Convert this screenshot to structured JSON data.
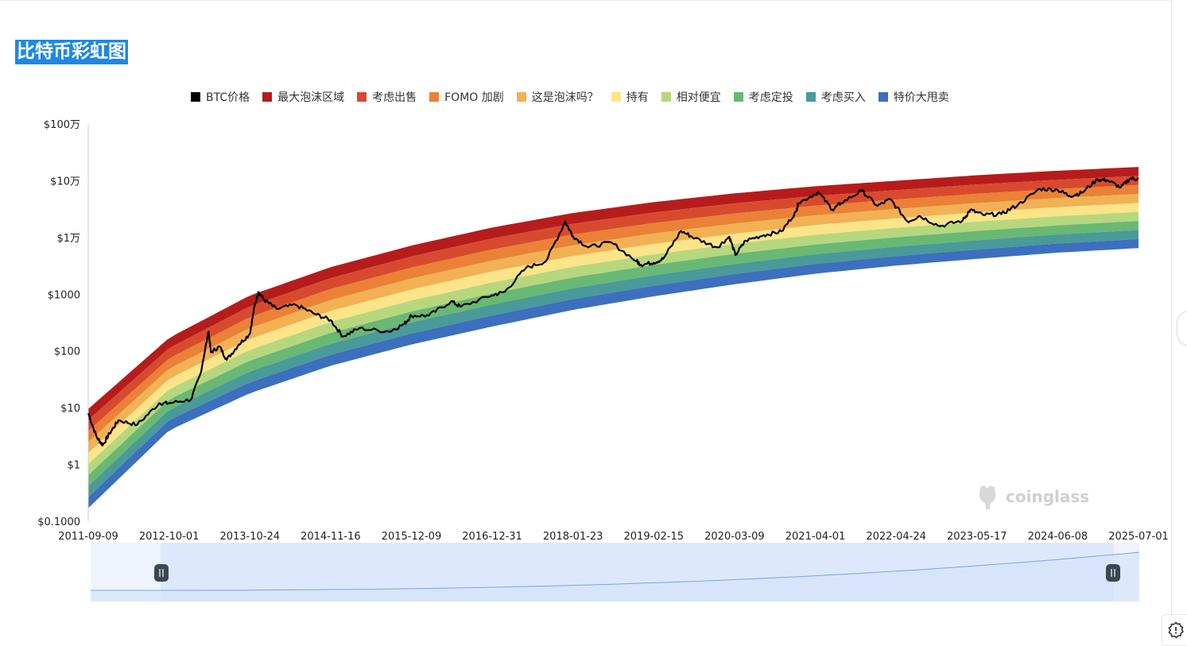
{
  "page": {
    "title": "比特币彩虹图",
    "watermark": "coinglass"
  },
  "legend": [
    {
      "label": "BTC价格",
      "color": "#000000"
    },
    {
      "label": "最大泡沫区域",
      "color": "#b71c1c"
    },
    {
      "label": "考虑出售",
      "color": "#d84a2e"
    },
    {
      "label": "FOMO 加剧",
      "color": "#ea8136"
    },
    {
      "label": "这是泡沫吗？",
      "color": "#f2b155"
    },
    {
      "label": "持有",
      "color": "#fce488"
    },
    {
      "label": "相对便宜",
      "color": "#b7d77e"
    },
    {
      "label": "考虑定投",
      "color": "#69b874"
    },
    {
      "label": "考虑买入",
      "color": "#4a9a99"
    },
    {
      "label": "特价大甩卖",
      "color": "#3c6fbd"
    }
  ],
  "chart_data": {
    "type": "area",
    "title": "比特币彩虹图",
    "y_scale": "log",
    "ylim": [
      0.1,
      1000000
    ],
    "y_ticks": [
      "$0.1000",
      "$1",
      "$10",
      "$100",
      "$1000",
      "$1万",
      "$10万",
      "$100万"
    ],
    "x_ticks": [
      "2011-09-09",
      "2012-10-01",
      "2013-10-24",
      "2014-11-16",
      "2015-12-09",
      "2016-12-31",
      "2018-01-23",
      "2019-02-15",
      "2020-03-09",
      "2021-04-01",
      "2022-04-24",
      "2023-05-17",
      "2024-06-08",
      "2025-07-01"
    ],
    "xlim": [
      "2011-09-09",
      "2025-07-01"
    ],
    "band_edges": {
      "x": [
        "2011-09-09",
        "2012-10-01",
        "2013-10-24",
        "2014-11-16",
        "2015-12-09",
        "2016-12-31",
        "2018-01-23",
        "2019-02-15",
        "2020-03-09",
        "2021-04-01",
        "2022-04-24",
        "2023-05-17",
        "2024-06-08",
        "2025-07-01"
      ],
      "bottom": [
        0.17,
        4.0,
        18,
        55,
        130,
        270,
        530,
        920,
        1500,
        2300,
        3200,
        4200,
        5400,
        6500
      ],
      "top": [
        9.5,
        170,
        950,
        3000,
        7200,
        15000,
        27000,
        42000,
        60000,
        80000,
        100000,
        125000,
        150000,
        175000
      ]
    },
    "series": [
      {
        "name": "BTC价格",
        "x": [
          "2011-09-09",
          "2011-10-20",
          "2011-11-18",
          "2011-12-20",
          "2012-02-01",
          "2012-05-01",
          "2012-08-15",
          "2012-10-01",
          "2013-01-15",
          "2013-03-01",
          "2013-04-09",
          "2013-04-20",
          "2013-06-01",
          "2013-07-05",
          "2013-09-01",
          "2013-10-24",
          "2013-11-15",
          "2013-12-04",
          "2014-01-01",
          "2014-03-01",
          "2014-06-01",
          "2014-09-01",
          "2014-11-16",
          "2015-01-14",
          "2015-04-01",
          "2015-08-25",
          "2015-11-05",
          "2015-12-09",
          "2016-03-01",
          "2016-06-17",
          "2016-08-01",
          "2016-12-31",
          "2017-03-01",
          "2017-06-11",
          "2017-09-15",
          "2017-12-17",
          "2018-01-23",
          "2018-04-06",
          "2018-07-25",
          "2018-11-25",
          "2018-12-15",
          "2019-02-15",
          "2019-04-01",
          "2019-06-26",
          "2019-09-01",
          "2019-12-17",
          "2020-02-13",
          "2020-03-13",
          "2020-05-01",
          "2020-07-27",
          "2020-10-21",
          "2020-12-31",
          "2021-01-08",
          "2021-04-14",
          "2021-06-22",
          "2021-08-01",
          "2021-11-10",
          "2022-01-24",
          "2022-03-28",
          "2022-06-18",
          "2022-08-14",
          "2022-11-21",
          "2023-03-10",
          "2023-04-14",
          "2023-06-15",
          "2023-09-11",
          "2023-12-01",
          "2024-03-14",
          "2024-06-08",
          "2024-08-05",
          "2024-10-01",
          "2024-12-17",
          "2025-02-01",
          "2025-04-07",
          "2025-05-22",
          "2025-07-01"
        ],
        "y": [
          8,
          3,
          2.2,
          3.5,
          6,
          5,
          12,
          12,
          14,
          40,
          220,
          95,
          120,
          70,
          130,
          200,
          600,
          1100,
          800,
          550,
          650,
          450,
          350,
          180,
          250,
          220,
          300,
          420,
          420,
          750,
          600,
          960,
          1100,
          2900,
          3800,
          19000,
          10500,
          6700,
          8200,
          3800,
          3300,
          3600,
          4200,
          13000,
          9700,
          6700,
          10300,
          4900,
          8800,
          11000,
          12800,
          29000,
          40000,
          63000,
          31000,
          40000,
          67000,
          36000,
          47000,
          19000,
          24000,
          15800,
          20000,
          30500,
          25000,
          25800,
          38000,
          72000,
          69000,
          54000,
          61000,
          106000,
          102000,
          76000,
          110000,
          107000
        ]
      }
    ]
  },
  "zoom_slider": {
    "start_label": "‖",
    "end_label": "‖"
  }
}
